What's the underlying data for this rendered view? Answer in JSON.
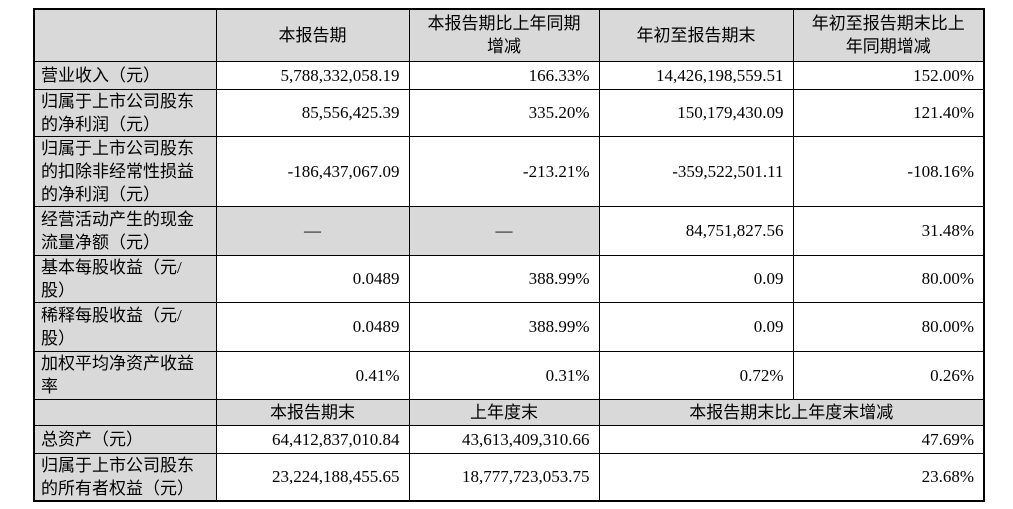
{
  "document": {
    "kind": "quarterly-report-key-financials-table",
    "language": "zh-CN"
  },
  "colors": {
    "shaded_cell_bg": "#d9d9d9",
    "border": "#000000",
    "text": "#000000",
    "page_bg": "#ffffff"
  },
  "table": {
    "sections": [
      {
        "id": "reporting-period",
        "header_cells": [
          {
            "text": "",
            "colspan": 1
          },
          {
            "text": "本报告期",
            "colspan": 1
          },
          {
            "text": "本报告期比上年同期增减",
            "colspan": 1
          },
          {
            "text": "年初至报告期末",
            "colspan": 1
          },
          {
            "text": "年初至报告期末比上年同期增减",
            "colspan": 1
          }
        ],
        "rows": [
          {
            "label": "营业收入（元）",
            "cells": [
              {
                "text": "5,788,332,058.19"
              },
              {
                "text": "166.33%"
              },
              {
                "text": "14,426,198,559.51"
              },
              {
                "text": "152.00%"
              }
            ]
          },
          {
            "label": "归属于上市公司股东的净利润（元）",
            "cells": [
              {
                "text": "85,556,425.39"
              },
              {
                "text": "335.20%"
              },
              {
                "text": "150,179,430.09"
              },
              {
                "text": "121.40%"
              }
            ]
          },
          {
            "label": "归属于上市公司股东的扣除非经常性损益的净利润（元）",
            "cells": [
              {
                "text": "-186,437,067.09"
              },
              {
                "text": "-213.21%"
              },
              {
                "text": "-359,522,501.11"
              },
              {
                "text": "-108.16%"
              }
            ]
          },
          {
            "label": "经营活动产生的现金流量净额（元）",
            "cells": [
              {
                "text": "—"
              },
              {
                "text": "—"
              },
              {
                "text": "84,751,827.56"
              },
              {
                "text": "31.48%"
              }
            ]
          },
          {
            "label": "基本每股收益（元/股）",
            "cells": [
              {
                "text": "0.0489"
              },
              {
                "text": "388.99%"
              },
              {
                "text": "0.09"
              },
              {
                "text": "80.00%"
              }
            ]
          },
          {
            "label": "稀释每股收益（元/股）",
            "cells": [
              {
                "text": "0.0489"
              },
              {
                "text": "388.99%"
              },
              {
                "text": "0.09"
              },
              {
                "text": "80.00%"
              }
            ]
          },
          {
            "label": "加权平均净资产收益率",
            "cells": [
              {
                "text": "0.41%"
              },
              {
                "text": "0.31%"
              },
              {
                "text": "0.72%"
              },
              {
                "text": "0.26%"
              }
            ]
          }
        ]
      },
      {
        "id": "period-end",
        "header_cells": [
          {
            "text": "",
            "colspan": 1
          },
          {
            "text": "本报告期末",
            "colspan": 1
          },
          {
            "text": "上年度末",
            "colspan": 1
          },
          {
            "text": "本报告期末比上年度末增减",
            "colspan": 2
          }
        ],
        "rows": [
          {
            "label": "总资产（元）",
            "cells": [
              {
                "text": "64,412,837,010.84"
              },
              {
                "text": "43,613,409,310.66"
              },
              {
                "text": "47.69%",
                "colspan": 2
              }
            ]
          },
          {
            "label": "归属于上市公司股东的所有者权益（元）",
            "cells": [
              {
                "text": "23,224,188,455.65"
              },
              {
                "text": "18,777,723,053.75"
              },
              {
                "text": "23.68%",
                "colspan": 2
              }
            ]
          }
        ]
      }
    ]
  }
}
